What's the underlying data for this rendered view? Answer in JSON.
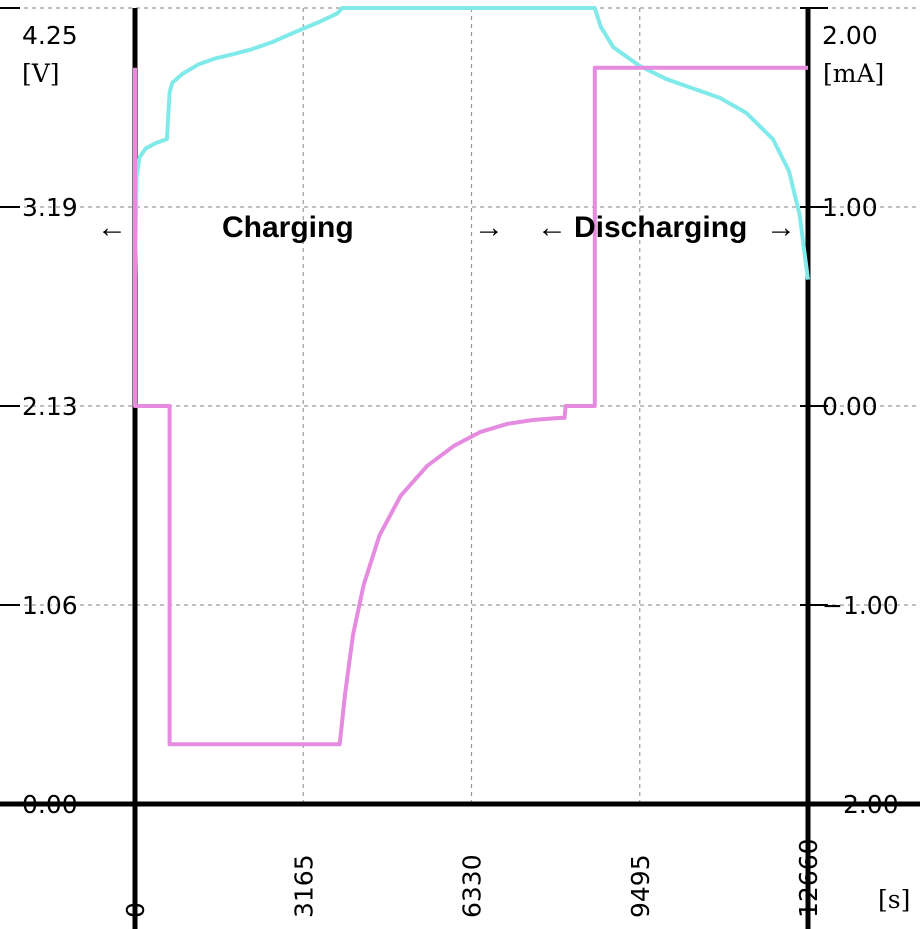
{
  "chart_data": {
    "type": "line",
    "title": "",
    "xlabel": "[s]",
    "ylabel_left": "[V]",
    "ylabel_right": "[mA]",
    "xlim": [
      0,
      12660
    ],
    "ylim_left": [
      0,
      4.25
    ],
    "ylim_right": [
      -2,
      2
    ],
    "grid": true,
    "x_ticks": [
      "0",
      "3165",
      "6330",
      "9495",
      "12660"
    ],
    "y_left_ticks": [
      "0.00",
      "1.06",
      "2.13",
      "3.19",
      "4.25"
    ],
    "y_right_ticks": [
      "-2.00",
      "-1.00",
      "0.00",
      "1.00",
      "2.00"
    ],
    "annotations": {
      "charging": "Charging",
      "discharging": "Discharging"
    },
    "series": [
      {
        "axis": "left",
        "color": "#80eaea",
        "points": [
          [
            0,
            2.8
          ],
          [
            30,
            3.35
          ],
          [
            80,
            3.45
          ],
          [
            200,
            3.5
          ],
          [
            400,
            3.53
          ],
          [
            600,
            3.55
          ],
          [
            650,
            3.8
          ],
          [
            700,
            3.85
          ],
          [
            900,
            3.9
          ],
          [
            1200,
            3.95
          ],
          [
            1500,
            3.98
          ],
          [
            1800,
            4.0
          ],
          [
            2200,
            4.03
          ],
          [
            2600,
            4.07
          ],
          [
            3000,
            4.12
          ],
          [
            3500,
            4.18
          ],
          [
            3800,
            4.22
          ],
          [
            3900,
            4.25
          ],
          [
            8650,
            4.25
          ],
          [
            8760,
            4.15
          ],
          [
            9000,
            4.04
          ],
          [
            9500,
            3.94
          ],
          [
            10000,
            3.87
          ],
          [
            10500,
            3.82
          ],
          [
            11000,
            3.77
          ],
          [
            11500,
            3.69
          ],
          [
            12000,
            3.55
          ],
          [
            12300,
            3.38
          ],
          [
            12500,
            3.15
          ],
          [
            12660,
            2.8
          ]
        ]
      },
      {
        "axis": "right",
        "color": "#e58be0",
        "points": [
          [
            0,
            1.7
          ],
          [
            0,
            0
          ],
          [
            650,
            0
          ],
          [
            650,
            -1.7
          ],
          [
            3850,
            -1.7
          ],
          [
            3950,
            -1.45
          ],
          [
            4100,
            -1.15
          ],
          [
            4300,
            -0.9
          ],
          [
            4600,
            -0.65
          ],
          [
            5000,
            -0.45
          ],
          [
            5500,
            -0.3
          ],
          [
            6000,
            -0.2
          ],
          [
            6500,
            -0.13
          ],
          [
            7000,
            -0.09
          ],
          [
            7500,
            -0.07
          ],
          [
            8000,
            -0.06
          ],
          [
            8080,
            -0.06
          ],
          [
            8100,
            0
          ],
          [
            8650,
            0
          ],
          [
            8650,
            1.7
          ],
          [
            12660,
            1.7
          ]
        ]
      }
    ]
  }
}
